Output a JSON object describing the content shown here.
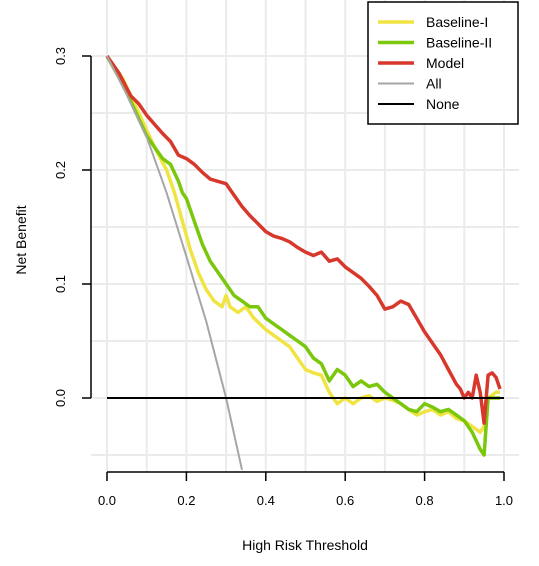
{
  "chart_data": {
    "type": "line",
    "title": "",
    "xlabel": "High Risk Threshold",
    "ylabel": "Net Benefit",
    "xlim": [
      0,
      1
    ],
    "ylim": [
      -0.065,
      0.34
    ],
    "x_ticks": [
      "0.0",
      "0.2",
      "0.4",
      "0.6",
      "0.8",
      "1.0"
    ],
    "y_ticks": [
      "0.0",
      "0.1",
      "0.2",
      "0.3"
    ],
    "grid": true,
    "legend_position": "top-right",
    "series": [
      {
        "name": "Baseline-I",
        "color": "#f0e442",
        "width": 3.5,
        "points": [
          [
            0.0,
            0.3
          ],
          [
            0.04,
            0.28
          ],
          [
            0.08,
            0.25
          ],
          [
            0.12,
            0.22
          ],
          [
            0.15,
            0.2
          ],
          [
            0.17,
            0.18
          ],
          [
            0.19,
            0.155
          ],
          [
            0.21,
            0.13
          ],
          [
            0.23,
            0.11
          ],
          [
            0.25,
            0.095
          ],
          [
            0.27,
            0.085
          ],
          [
            0.29,
            0.08
          ],
          [
            0.3,
            0.09
          ],
          [
            0.31,
            0.08
          ],
          [
            0.33,
            0.075
          ],
          [
            0.35,
            0.08
          ],
          [
            0.37,
            0.07
          ],
          [
            0.4,
            0.06
          ],
          [
            0.42,
            0.055
          ],
          [
            0.44,
            0.05
          ],
          [
            0.46,
            0.045
          ],
          [
            0.48,
            0.035
          ],
          [
            0.5,
            0.025
          ],
          [
            0.52,
            0.022
          ],
          [
            0.54,
            0.02
          ],
          [
            0.56,
            0.005
          ],
          [
            0.58,
            -0.005
          ],
          [
            0.6,
            0.0
          ],
          [
            0.62,
            -0.005
          ],
          [
            0.64,
            0.0
          ],
          [
            0.66,
            0.002
          ],
          [
            0.68,
            -0.003
          ],
          [
            0.7,
            0.0
          ],
          [
            0.72,
            -0.002
          ],
          [
            0.74,
            -0.005
          ],
          [
            0.76,
            -0.01
          ],
          [
            0.78,
            -0.015
          ],
          [
            0.8,
            -0.012
          ],
          [
            0.82,
            -0.01
          ],
          [
            0.84,
            -0.015
          ],
          [
            0.86,
            -0.012
          ],
          [
            0.88,
            -0.018
          ],
          [
            0.9,
            -0.02
          ],
          [
            0.92,
            -0.025
          ],
          [
            0.94,
            -0.03
          ],
          [
            0.95,
            -0.025
          ],
          [
            0.96,
            0.0
          ],
          [
            0.98,
            0.005
          ],
          [
            0.99,
            0.005
          ]
        ]
      },
      {
        "name": "Baseline-II",
        "color": "#7ac70c",
        "width": 3.5,
        "points": [
          [
            0.0,
            0.3
          ],
          [
            0.04,
            0.275
          ],
          [
            0.08,
            0.245
          ],
          [
            0.1,
            0.23
          ],
          [
            0.12,
            0.22
          ],
          [
            0.14,
            0.21
          ],
          [
            0.16,
            0.205
          ],
          [
            0.18,
            0.19
          ],
          [
            0.19,
            0.18
          ],
          [
            0.2,
            0.175
          ],
          [
            0.22,
            0.155
          ],
          [
            0.24,
            0.135
          ],
          [
            0.26,
            0.12
          ],
          [
            0.28,
            0.11
          ],
          [
            0.3,
            0.1
          ],
          [
            0.32,
            0.09
          ],
          [
            0.34,
            0.085
          ],
          [
            0.36,
            0.08
          ],
          [
            0.38,
            0.08
          ],
          [
            0.4,
            0.07
          ],
          [
            0.42,
            0.065
          ],
          [
            0.44,
            0.06
          ],
          [
            0.46,
            0.055
          ],
          [
            0.48,
            0.05
          ],
          [
            0.5,
            0.045
          ],
          [
            0.52,
            0.035
          ],
          [
            0.54,
            0.03
          ],
          [
            0.56,
            0.015
          ],
          [
            0.58,
            0.025
          ],
          [
            0.6,
            0.02
          ],
          [
            0.62,
            0.01
          ],
          [
            0.64,
            0.015
          ],
          [
            0.66,
            0.01
          ],
          [
            0.68,
            0.012
          ],
          [
            0.7,
            0.005
          ],
          [
            0.72,
            0.0
          ],
          [
            0.74,
            -0.005
          ],
          [
            0.76,
            -0.01
          ],
          [
            0.78,
            -0.012
          ],
          [
            0.8,
            -0.005
          ],
          [
            0.82,
            -0.008
          ],
          [
            0.84,
            -0.012
          ],
          [
            0.86,
            -0.01
          ],
          [
            0.88,
            -0.015
          ],
          [
            0.9,
            -0.02
          ],
          [
            0.92,
            -0.03
          ],
          [
            0.94,
            -0.045
          ],
          [
            0.95,
            -0.05
          ],
          [
            0.96,
            0.0
          ],
          [
            0.98,
            0.0
          ],
          [
            0.99,
            0.0
          ]
        ]
      },
      {
        "name": "Model",
        "color": "#d7382b",
        "width": 3.5,
        "points": [
          [
            0.0,
            0.3
          ],
          [
            0.03,
            0.285
          ],
          [
            0.06,
            0.265
          ],
          [
            0.08,
            0.258
          ],
          [
            0.1,
            0.248
          ],
          [
            0.12,
            0.24
          ],
          [
            0.14,
            0.232
          ],
          [
            0.16,
            0.225
          ],
          [
            0.18,
            0.213
          ],
          [
            0.2,
            0.21
          ],
          [
            0.22,
            0.205
          ],
          [
            0.24,
            0.198
          ],
          [
            0.26,
            0.192
          ],
          [
            0.28,
            0.19
          ],
          [
            0.3,
            0.188
          ],
          [
            0.32,
            0.178
          ],
          [
            0.34,
            0.168
          ],
          [
            0.36,
            0.16
          ],
          [
            0.38,
            0.153
          ],
          [
            0.4,
            0.146
          ],
          [
            0.42,
            0.142
          ],
          [
            0.44,
            0.14
          ],
          [
            0.46,
            0.137
          ],
          [
            0.48,
            0.132
          ],
          [
            0.5,
            0.128
          ],
          [
            0.52,
            0.125
          ],
          [
            0.54,
            0.128
          ],
          [
            0.56,
            0.12
          ],
          [
            0.58,
            0.122
          ],
          [
            0.6,
            0.115
          ],
          [
            0.62,
            0.11
          ],
          [
            0.64,
            0.105
          ],
          [
            0.66,
            0.098
          ],
          [
            0.68,
            0.09
          ],
          [
            0.7,
            0.078
          ],
          [
            0.72,
            0.08
          ],
          [
            0.74,
            0.085
          ],
          [
            0.76,
            0.082
          ],
          [
            0.78,
            0.07
          ],
          [
            0.8,
            0.058
          ],
          [
            0.82,
            0.048
          ],
          [
            0.84,
            0.038
          ],
          [
            0.86,
            0.025
          ],
          [
            0.88,
            0.012
          ],
          [
            0.89,
            0.008
          ],
          [
            0.9,
            0.0
          ],
          [
            0.91,
            0.005
          ],
          [
            0.92,
            0.0
          ],
          [
            0.93,
            0.02
          ],
          [
            0.94,
            0.005
          ],
          [
            0.95,
            -0.022
          ],
          [
            0.96,
            0.02
          ],
          [
            0.97,
            0.022
          ],
          [
            0.98,
            0.018
          ],
          [
            0.99,
            0.008
          ]
        ]
      },
      {
        "name": "All",
        "color": "#a6a6a6",
        "width": 2,
        "points": [
          [
            0.0,
            0.3
          ],
          [
            0.05,
            0.266
          ],
          [
            0.1,
            0.229
          ],
          [
            0.15,
            0.18
          ],
          [
            0.2,
            0.124
          ],
          [
            0.25,
            0.067
          ],
          [
            0.3,
            0.0
          ],
          [
            0.34,
            -0.063
          ]
        ]
      },
      {
        "name": "None",
        "color": "#000000",
        "width": 2,
        "points": [
          [
            0.0,
            0.0
          ],
          [
            1.0,
            0.0
          ]
        ]
      }
    ]
  }
}
